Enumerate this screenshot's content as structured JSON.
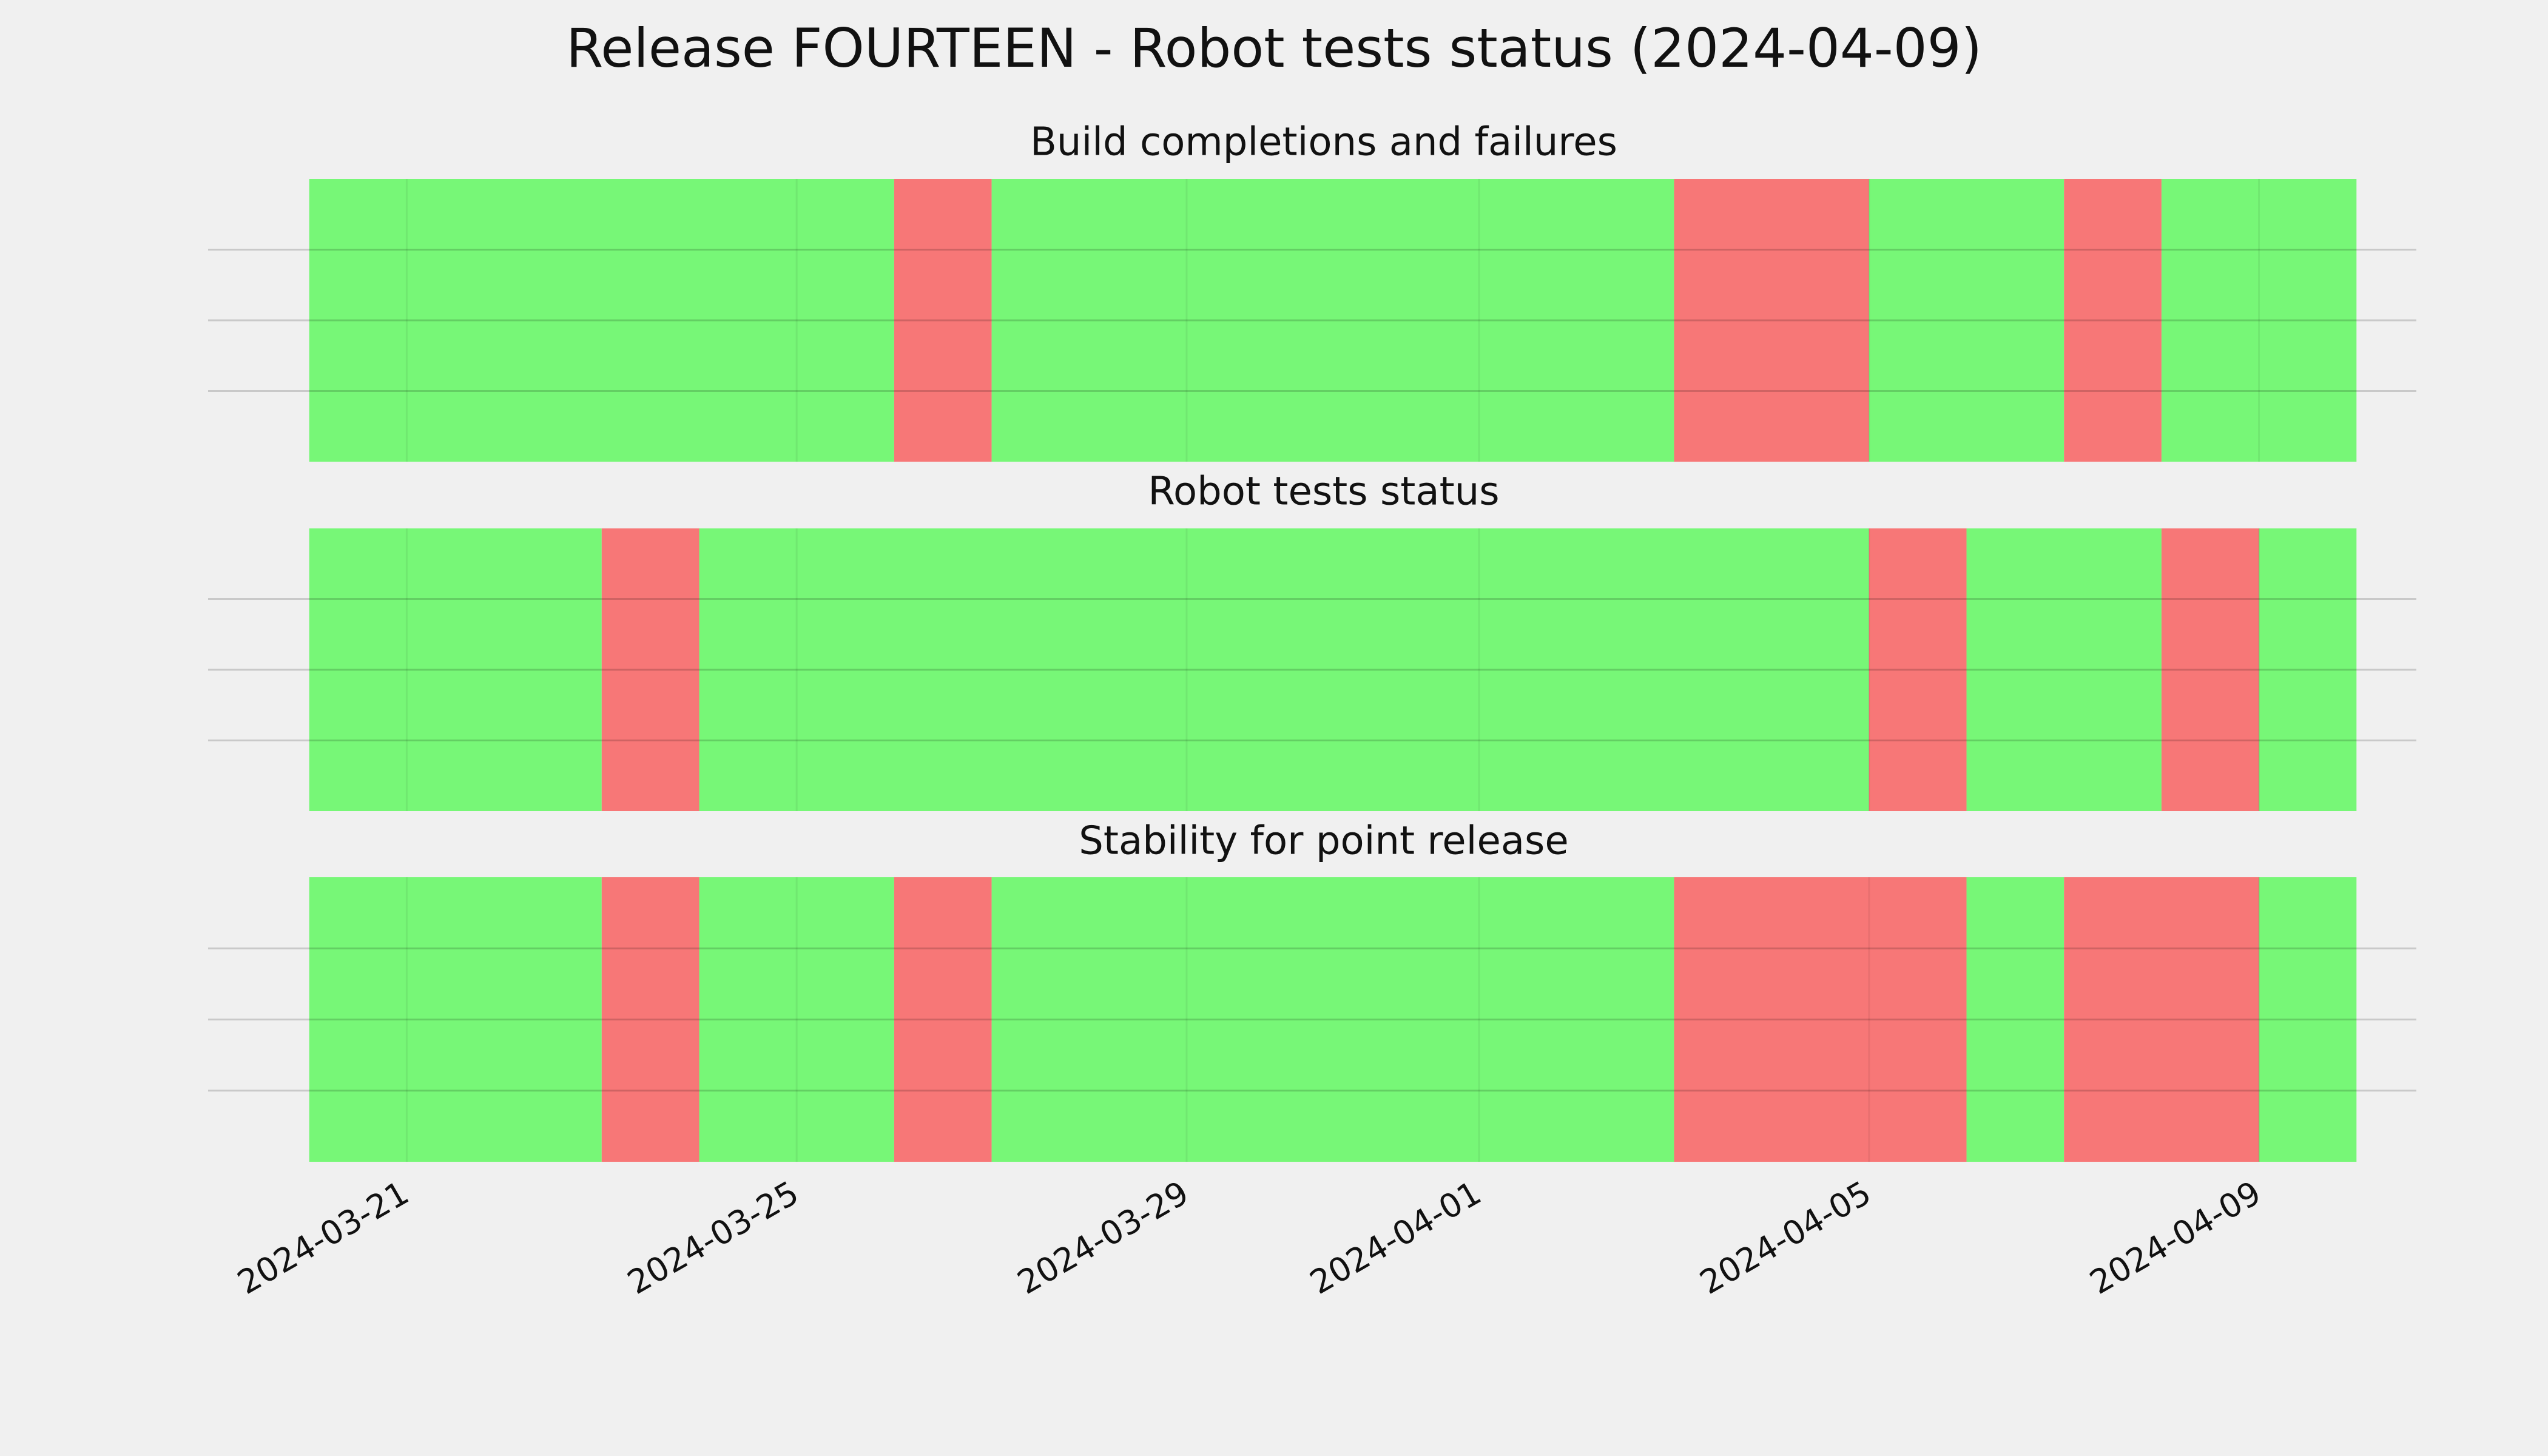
{
  "title": "Release FOURTEEN - Robot tests status (2024-04-09)",
  "chart_data": [
    {
      "type": "span",
      "title": "Build completions and failures",
      "x": [
        "2024-03-20",
        "2024-03-26",
        "2024-03-27",
        "2024-04-03",
        "2024-04-05",
        "2024-04-07",
        "2024-04-08",
        "2024-04-10"
      ],
      "colors": [
        "#77f777",
        "#f77777",
        "#77f777",
        "#f77777",
        "#77f777",
        "#f77777",
        "#77f777"
      ],
      "xlim": [
        "2024-03-19",
        "2024-04-11"
      ],
      "xticks": [
        "2024-03-21",
        "2024-03-25",
        "2024-03-29",
        "2024-04-01",
        "2024-04-05",
        "2024-04-09"
      ],
      "ylim": [
        0,
        1
      ],
      "yticks": [
        0.25,
        0.5,
        0.75
      ],
      "grid": true
    },
    {
      "type": "span",
      "title": "Robot tests status",
      "x": [
        "2024-03-20",
        "2024-03-23",
        "2024-03-24",
        "2024-04-05",
        "2024-04-06",
        "2024-04-08",
        "2024-04-09",
        "2024-04-10"
      ],
      "colors": [
        "#77f777",
        "#f77777",
        "#77f777",
        "#f77777",
        "#77f777",
        "#f77777",
        "#77f777"
      ],
      "xlim": [
        "2024-03-19",
        "2024-04-11"
      ],
      "xticks": [
        "2024-03-21",
        "2024-03-25",
        "2024-03-29",
        "2024-04-01",
        "2024-04-05",
        "2024-04-09"
      ],
      "ylim": [
        0,
        1
      ],
      "yticks": [
        0.25,
        0.5,
        0.75
      ],
      "grid": true
    },
    {
      "type": "span",
      "title": "Stability for point release",
      "x": [
        "2024-03-20",
        "2024-03-23",
        "2024-03-24",
        "2024-03-26",
        "2024-03-27",
        "2024-04-03",
        "2024-04-06",
        "2024-04-07",
        "2024-04-09",
        "2024-04-10"
      ],
      "colors": [
        "#77f777",
        "#f77777",
        "#77f777",
        "#f77777",
        "#77f777",
        "#f77777",
        "#77f777",
        "#f77777",
        "#77f777"
      ],
      "xlim": [
        "2024-03-19",
        "2024-04-11"
      ],
      "xticks": [
        "2024-03-21",
        "2024-03-25",
        "2024-03-29",
        "2024-04-01",
        "2024-04-05",
        "2024-04-09"
      ],
      "ylim": [
        0,
        1
      ],
      "yticks": [
        0.25,
        0.5,
        0.75
      ],
      "grid": true
    }
  ]
}
